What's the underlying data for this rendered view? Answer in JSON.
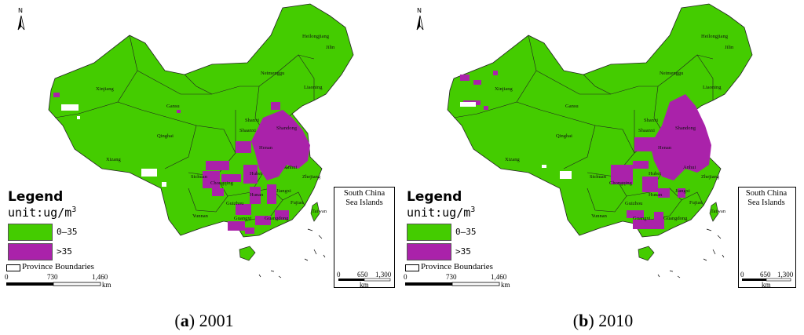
{
  "panels": [
    {
      "caption_letter": "a",
      "caption_year": "2001",
      "legend_title": "Legend",
      "unit_label": "unit:ug/m",
      "unit_sup": "3",
      "classes": [
        {
          "label": "0–35",
          "color": "#44cc00"
        },
        {
          "label": ">35",
          "color": "#aa22aa"
        }
      ],
      "boundary_label": "Province Boundaries",
      "scale": {
        "ticks": [
          "0",
          "730",
          "1,460"
        ],
        "unit": "km"
      },
      "inset": {
        "title_line1": "South China",
        "title_line2": "Sea Islands",
        "ticks": [
          "0",
          "650",
          "1,300"
        ],
        "unit": "km"
      },
      "north": "N",
      "provinces": [
        "Heilongjiang",
        "Jilin",
        "Neimenggu",
        "Liaoning",
        "Xinjiang",
        "Gansu",
        "Qinghai",
        "Xizang",
        "Sichuan",
        "Yunnan",
        "Guizhou",
        "Henan",
        "Shandong",
        "Hubei",
        "Hunan",
        "Jiangxi",
        "Fujian",
        "Guangdong",
        "Guangxi",
        "Taiwan",
        "Shaanxi",
        "Shanxi",
        "Anhui",
        "Zhejiang",
        "Chongqing"
      ]
    },
    {
      "caption_letter": "b",
      "caption_year": "2010",
      "legend_title": "Legend",
      "unit_label": "unit:ug/m",
      "unit_sup": "3",
      "classes": [
        {
          "label": "0–35",
          "color": "#44cc00"
        },
        {
          "label": ">35",
          "color": "#aa22aa"
        }
      ],
      "boundary_label": "Province Boundaries",
      "scale": {
        "ticks": [
          "0",
          "730",
          "1,460"
        ],
        "unit": "km"
      },
      "inset": {
        "title_line1": "South China",
        "title_line2": "Sea Islands",
        "ticks": [
          "0",
          "650",
          "1,300"
        ],
        "unit": "km"
      },
      "north": "N",
      "provinces": [
        "Heilongjiang",
        "Jilin",
        "Neimenggu",
        "Liaoning",
        "Xinjiang",
        "Gansu",
        "Qinghai",
        "Xizang",
        "Sichuan",
        "Yunnan",
        "Guizhou",
        "Henan",
        "Shandong",
        "Hubei",
        "Hunan",
        "Jiangxi",
        "Fujian",
        "Guangdong",
        "Guangxi",
        "Taiwan",
        "Shaanxi",
        "Shanxi",
        "Anhui",
        "Zhejiang",
        "Chongqing"
      ]
    }
  ]
}
